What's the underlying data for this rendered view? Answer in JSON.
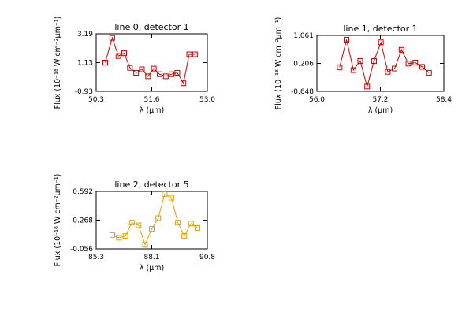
{
  "chart_data": [
    {
      "type": "line",
      "title": "line 0, detector 1",
      "xlabel": "λ (μm)",
      "ylabel": "Flux (10⁻¹⁸ W cm⁻²μm⁻¹)",
      "xlim": [
        50.3,
        53.0
      ],
      "ylim": [
        -0.93,
        3.19
      ],
      "x_ticks": [
        "50.3",
        "51.6",
        "53.0"
      ],
      "y_ticks": [
        "-0.93",
        "1.13",
        "3.19"
      ],
      "marker": "square",
      "color": "#cc0000",
      "grid": false,
      "series": [
        {
          "x": [
            50.52,
            50.69,
            50.84,
            50.98,
            51.12,
            51.27,
            51.41,
            51.56,
            51.7,
            51.84,
            51.99,
            52.13,
            52.27,
            52.42,
            52.56,
            52.7
          ],
          "y": [
            1.13,
            2.9,
            1.6,
            1.8,
            0.75,
            0.4,
            0.65,
            0.15,
            0.7,
            0.3,
            0.15,
            0.3,
            0.4,
            -0.35,
            1.72,
            1.72
          ]
        }
      ]
    },
    {
      "type": "line",
      "title": "line 1, detector 1",
      "xlabel": "λ (μm)",
      "ylabel": "Flux (10⁻¹⁸ W cm⁻²μm⁻¹)",
      "xlim": [
        56.0,
        58.4
      ],
      "ylim": [
        -0.648,
        1.061
      ],
      "x_ticks": [
        "56.0",
        "57.2",
        "58.4"
      ],
      "y_ticks": [
        "-0.648",
        "0.206",
        "1.061"
      ],
      "marker": "square",
      "color": "#cc0000",
      "grid": false,
      "series": [
        {
          "x": [
            56.43,
            56.56,
            56.69,
            56.82,
            56.95,
            57.08,
            57.21,
            57.34,
            57.47,
            57.6,
            57.73,
            57.86,
            57.99,
            58.12
          ],
          "y": [
            0.09,
            0.93,
            0.0,
            0.28,
            -0.5,
            0.28,
            0.85,
            -0.05,
            0.05,
            0.62,
            0.2,
            0.23,
            0.1,
            -0.08
          ]
        }
      ]
    },
    {
      "type": "line",
      "title": "line 2, detector 5",
      "xlabel": "λ (μm)",
      "ylabel": "Flux (10⁻¹⁸ W cm⁻²μm⁻¹)",
      "xlim": [
        85.3,
        90.8
      ],
      "ylim": [
        -0.056,
        0.592
      ],
      "x_ticks": [
        "85.3",
        "88.1",
        "90.8"
      ],
      "y_ticks": [
        "-0.056",
        "0.268",
        "0.592"
      ],
      "marker": "square",
      "color": "#e6a000",
      "grid": false,
      "series": [
        {
          "x": [
            86.1,
            86.42,
            86.75,
            87.07,
            87.4,
            87.72,
            88.05,
            88.37,
            88.69,
            89.02,
            89.34,
            89.66,
            89.99,
            90.31
          ],
          "y": [
            0.1,
            0.07,
            0.09,
            0.24,
            0.21,
            -0.01,
            0.17,
            0.29,
            0.56,
            0.52,
            0.24,
            0.09,
            0.23,
            0.18
          ]
        }
      ]
    }
  ]
}
